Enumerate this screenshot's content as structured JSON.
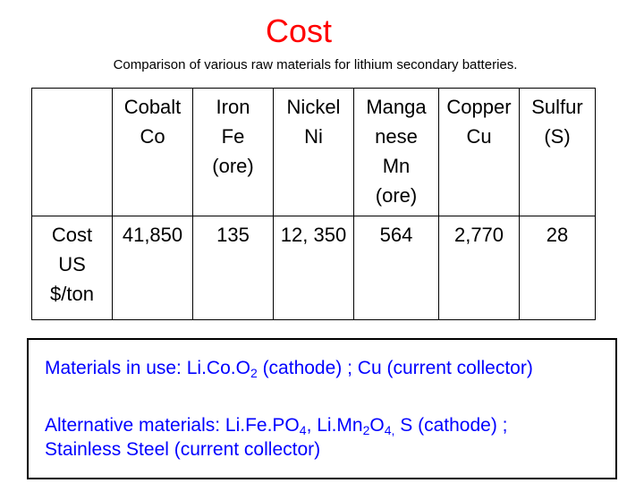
{
  "title": "Cost",
  "subtitle": "Comparison of various raw materials for lithium secondary batteries.",
  "table": {
    "headers": [
      [
        "",
        "",
        "",
        ""
      ],
      [
        "Cobalt",
        "Co",
        "",
        ""
      ],
      [
        "Iron",
        "Fe",
        "(ore)",
        ""
      ],
      [
        "Nickel",
        "Ni",
        "",
        ""
      ],
      [
        "Manga",
        "nese",
        "Mn",
        "(ore)"
      ],
      [
        "Copper",
        "Cu",
        "",
        ""
      ],
      [
        "Sulfur",
        "(S)",
        "",
        ""
      ]
    ],
    "row_label": [
      "Cost",
      "US",
      "$/ton"
    ],
    "values": [
      "41,850",
      "135",
      "12, 350",
      "564",
      "2,770",
      "28"
    ]
  },
  "notes": {
    "line1": {
      "prefix": "Materials in use: Li.Co.O",
      "sub": "2",
      "suffix": " (cathode) ; Cu (current collector)"
    },
    "line2": {
      "p1": "Alternative materials: Li.Fe.PO",
      "s1": "4",
      "p2": ", Li.Mn",
      "s2": "2",
      "p3": "O",
      "s3": "4,",
      "p4": " S (cathode) ;"
    },
    "line3": "Stainless Steel (current collector)"
  },
  "colors": {
    "title": "#ff0000",
    "notes": "#0000ff",
    "text": "#000000"
  }
}
